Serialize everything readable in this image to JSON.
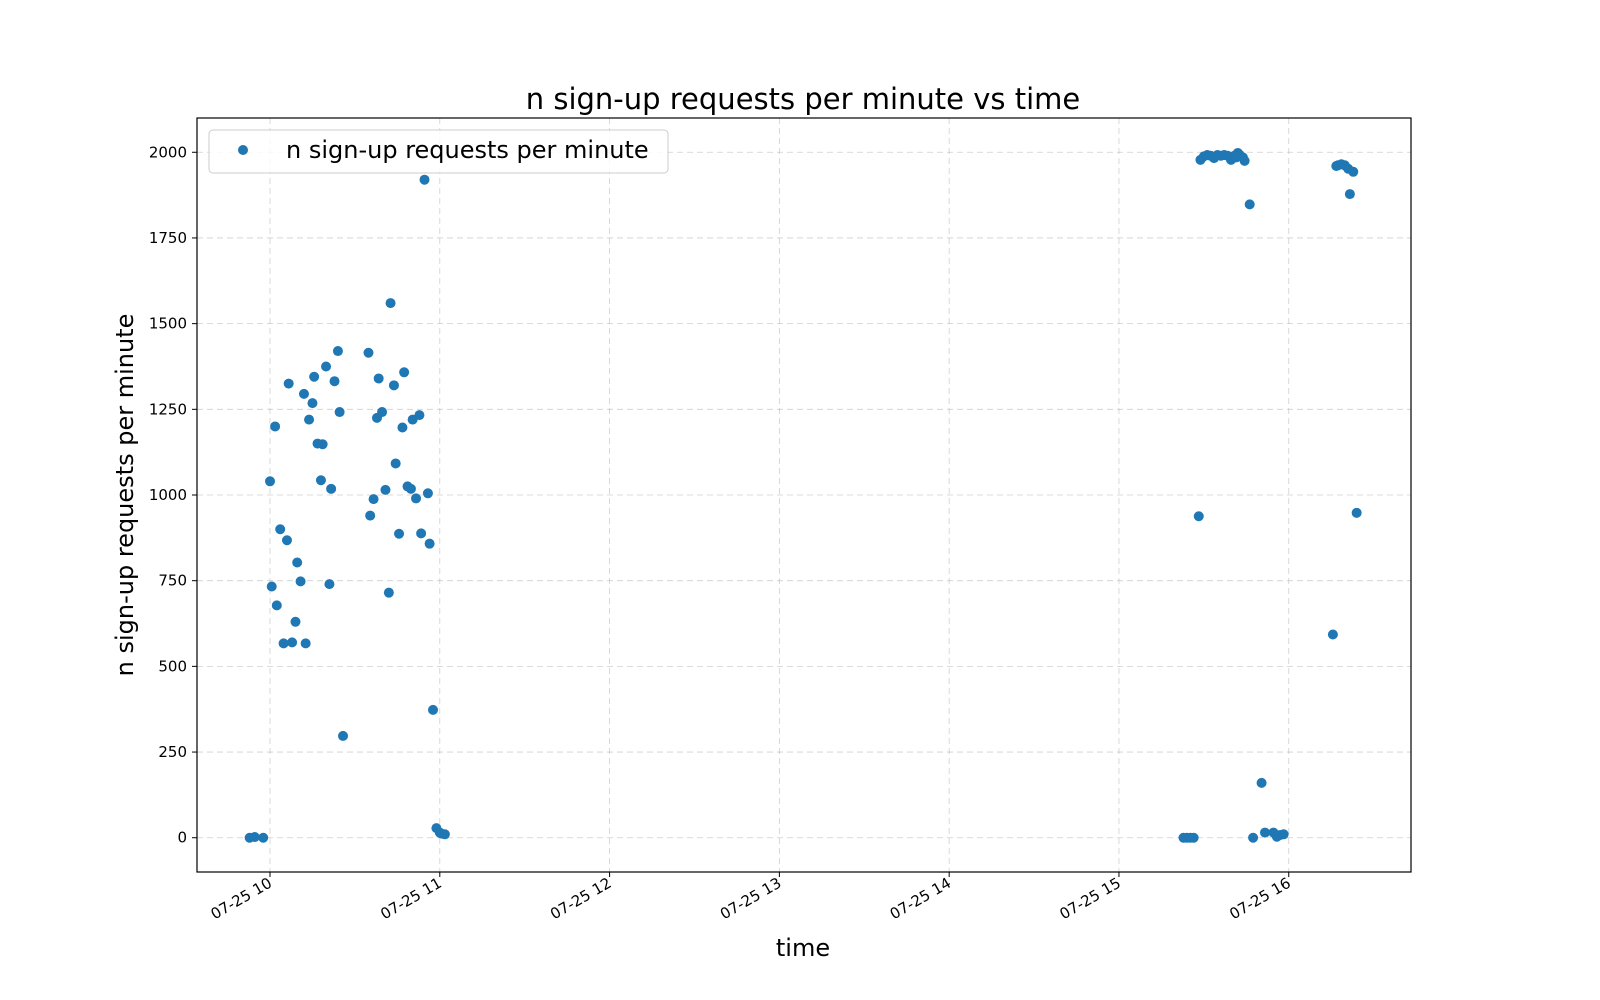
{
  "chart_data": {
    "type": "scatter",
    "title": "n sign-up requests per minute vs time",
    "xlabel": "time",
    "ylabel": "n sign-up requests per minute",
    "x_unit": "hour of day 2024-07-25 (decimal hours)",
    "xlim": [
      9.57,
      16.72
    ],
    "ylim": [
      -100,
      2100
    ],
    "x_ticks": [
      {
        "value": 10,
        "label": "07-25 10"
      },
      {
        "value": 11,
        "label": "07-25 11"
      },
      {
        "value": 12,
        "label": "07-25 12"
      },
      {
        "value": 13,
        "label": "07-25 13"
      },
      {
        "value": 14,
        "label": "07-25 14"
      },
      {
        "value": 15,
        "label": "07-25 15"
      },
      {
        "value": 16,
        "label": "07-25 16"
      }
    ],
    "y_ticks": [
      0,
      250,
      500,
      750,
      1000,
      1250,
      1500,
      1750,
      2000
    ],
    "grid": true,
    "legend": {
      "placement": "upper left",
      "entries": [
        "n sign-up requests per minute"
      ]
    },
    "colors": {
      "series": "#1f77b4"
    },
    "series": [
      {
        "name": "n sign-up requests per minute",
        "points": [
          [
            9.88,
            0
          ],
          [
            9.91,
            2
          ],
          [
            9.96,
            0
          ],
          [
            10.0,
            1040
          ],
          [
            10.01,
            733
          ],
          [
            10.03,
            1200
          ],
          [
            10.04,
            678
          ],
          [
            10.06,
            900
          ],
          [
            10.08,
            567
          ],
          [
            10.1,
            868
          ],
          [
            10.11,
            1325
          ],
          [
            10.13,
            570
          ],
          [
            10.15,
            630
          ],
          [
            10.16,
            803
          ],
          [
            10.18,
            748
          ],
          [
            10.2,
            1295
          ],
          [
            10.21,
            567
          ],
          [
            10.23,
            1220
          ],
          [
            10.25,
            1268
          ],
          [
            10.26,
            1345
          ],
          [
            10.28,
            1150
          ],
          [
            10.3,
            1043
          ],
          [
            10.31,
            1148
          ],
          [
            10.33,
            1375
          ],
          [
            10.35,
            740
          ],
          [
            10.36,
            1018
          ],
          [
            10.38,
            1332
          ],
          [
            10.4,
            1420
          ],
          [
            10.41,
            1242
          ],
          [
            10.43,
            297
          ],
          [
            10.58,
            1415
          ],
          [
            10.59,
            940
          ],
          [
            10.61,
            988
          ],
          [
            10.63,
            1225
          ],
          [
            10.64,
            1340
          ],
          [
            10.66,
            1242
          ],
          [
            10.68,
            1015
          ],
          [
            10.7,
            715
          ],
          [
            10.71,
            1560
          ],
          [
            10.73,
            1320
          ],
          [
            10.74,
            1092
          ],
          [
            10.76,
            887
          ],
          [
            10.78,
            1197
          ],
          [
            10.79,
            1358
          ],
          [
            10.81,
            1025
          ],
          [
            10.83,
            1018
          ],
          [
            10.84,
            1220
          ],
          [
            10.86,
            990
          ],
          [
            10.88,
            1233
          ],
          [
            10.89,
            888
          ],
          [
            10.91,
            1920
          ],
          [
            10.93,
            1005
          ],
          [
            10.94,
            858
          ],
          [
            10.96,
            373
          ],
          [
            10.98,
            28
          ],
          [
            11.0,
            15
          ],
          [
            11.01,
            12
          ],
          [
            11.03,
            10
          ],
          [
            15.38,
            0
          ],
          [
            15.4,
            0
          ],
          [
            15.42,
            0
          ],
          [
            15.44,
            0
          ],
          [
            15.47,
            938
          ],
          [
            15.48,
            1978
          ],
          [
            15.5,
            1988
          ],
          [
            15.52,
            1992
          ],
          [
            15.54,
            1990
          ],
          [
            15.56,
            1983
          ],
          [
            15.58,
            1992
          ],
          [
            15.6,
            1990
          ],
          [
            15.62,
            1992
          ],
          [
            15.64,
            1990
          ],
          [
            15.66,
            1978
          ],
          [
            15.68,
            1990
          ],
          [
            15.69,
            1985
          ],
          [
            15.7,
            1998
          ],
          [
            15.71,
            1993
          ],
          [
            15.73,
            1985
          ],
          [
            15.74,
            1975
          ],
          [
            15.77,
            1848
          ],
          [
            15.79,
            0
          ],
          [
            15.84,
            160
          ],
          [
            15.86,
            15
          ],
          [
            15.91,
            15
          ],
          [
            15.93,
            3
          ],
          [
            15.95,
            8
          ],
          [
            15.97,
            10
          ],
          [
            16.26,
            593
          ],
          [
            16.28,
            1960
          ],
          [
            16.29,
            1962
          ],
          [
            16.31,
            1965
          ],
          [
            16.33,
            1962
          ],
          [
            16.35,
            1952
          ],
          [
            16.36,
            1878
          ],
          [
            16.38,
            1943
          ],
          [
            16.4,
            948
          ]
        ]
      }
    ]
  }
}
